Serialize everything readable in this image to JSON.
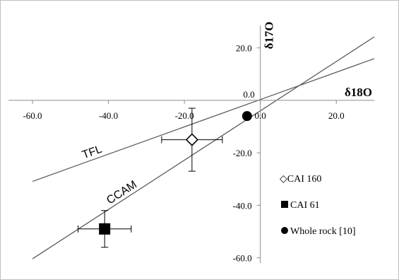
{
  "chart_data": {
    "type": "scatter",
    "xlabel": "δ18O",
    "ylabel": "δ17O",
    "xlim": [
      -60,
      30
    ],
    "ylim": [
      -62,
      28
    ],
    "x_ticks": [
      -60,
      -40,
      -20,
      0,
      20
    ],
    "y_ticks": [
      -60,
      -40,
      -20,
      0,
      20
    ],
    "tick_format_decimals": 1,
    "grid": false,
    "lines": [
      {
        "name": "TFL",
        "slope": 0.52,
        "intercept": 0.3,
        "x_range": [
          -60,
          30
        ],
        "color": "#555555"
      },
      {
        "name": "CCAM",
        "slope": 0.94,
        "intercept": -4.0,
        "x_range": [
          -60,
          30
        ],
        "color": "#555555"
      }
    ],
    "series": [
      {
        "name": "CAI 160",
        "marker": "open-diamond",
        "points": [
          {
            "x": -18,
            "y": -15,
            "xerr": 8,
            "yerr": 12
          }
        ]
      },
      {
        "name": "CAI 61",
        "marker": "filled-square",
        "points": [
          {
            "x": -41,
            "y": -49,
            "xerr": 7,
            "yerr": 7
          }
        ]
      },
      {
        "name": "Whole rock [10]",
        "marker": "filled-circle",
        "points": [
          {
            "x": -3.5,
            "y": -6
          }
        ]
      }
    ],
    "legend": {
      "position": "bottom-right",
      "entries": [
        {
          "label": "◇CAI 160",
          "marker": "open-diamond"
        },
        {
          "label": "CAI 61",
          "marker": "filled-square"
        },
        {
          "label": "Whole rock [10]",
          "marker": "filled-circle"
        }
      ]
    }
  }
}
